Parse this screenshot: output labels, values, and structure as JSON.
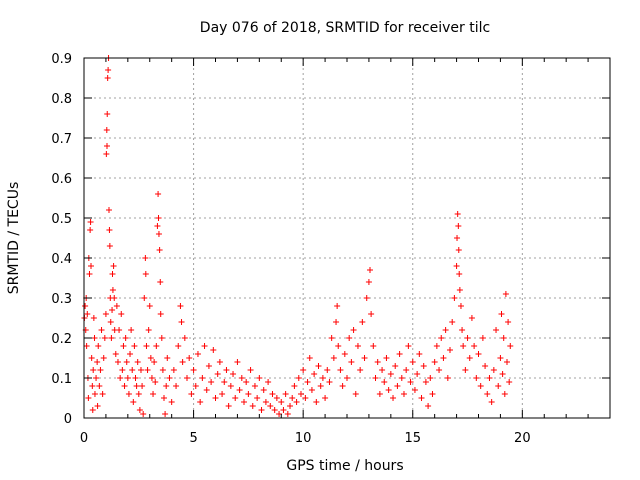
{
  "chart_data": {
    "type": "scatter",
    "title": "Day 076 of 2018, SRMTID for receiver tilc",
    "xlabel": "GPS time / hours",
    "ylabel": "SRMTID / TECUs",
    "xlim": [
      0,
      24
    ],
    "ylim": [
      0,
      0.9
    ],
    "xticks": [
      "0",
      "5",
      "10",
      "15",
      "20"
    ],
    "yticks": [
      "0",
      "0.1",
      "0.2",
      "0.3",
      "0.4",
      "0.5",
      "0.6",
      "0.7",
      "0.8",
      "0.9"
    ],
    "grid": true,
    "marker": "+",
    "marker_color": "#ff0000",
    "series": [
      {
        "name": "SRMTID",
        "points": [
          [
            0.02,
            0.25
          ],
          [
            0.05,
            0.28
          ],
          [
            0.08,
            0.22
          ],
          [
            0.1,
            0.3
          ],
          [
            0.12,
            0.18
          ],
          [
            0.15,
            0.26
          ],
          [
            0.18,
            0.1
          ],
          [
            0.2,
            0.05
          ],
          [
            0.22,
            0.4
          ],
          [
            0.25,
            0.36
          ],
          [
            0.28,
            0.47
          ],
          [
            0.3,
            0.49
          ],
          [
            0.32,
            0.38
          ],
          [
            0.35,
            0.15
          ],
          [
            0.38,
            0.08
          ],
          [
            0.4,
            0.02
          ],
          [
            0.42,
            0.12
          ],
          [
            0.45,
            0.25
          ],
          [
            0.48,
            0.2
          ],
          [
            0.5,
            0.06
          ],
          [
            0.55,
            0.1
          ],
          [
            0.6,
            0.14
          ],
          [
            0.62,
            0.03
          ],
          [
            0.65,
            0.18
          ],
          [
            0.7,
            0.08
          ],
          [
            0.75,
            0.12
          ],
          [
            0.8,
            0.22
          ],
          [
            0.85,
            0.06
          ],
          [
            0.9,
            0.15
          ],
          [
            0.95,
            0.2
          ],
          [
            1.0,
            0.26
          ],
          [
            1.02,
            0.66
          ],
          [
            1.04,
            0.72
          ],
          [
            1.05,
            0.68
          ],
          [
            1.06,
            0.76
          ],
          [
            1.08,
            0.85
          ],
          [
            1.1,
            0.87
          ],
          [
            1.12,
            0.9
          ],
          [
            1.14,
            0.52
          ],
          [
            1.16,
            0.47
          ],
          [
            1.18,
            0.43
          ],
          [
            1.2,
            0.3
          ],
          [
            1.22,
            0.24
          ],
          [
            1.25,
            0.2
          ],
          [
            1.28,
            0.27
          ],
          [
            1.3,
            0.36
          ],
          [
            1.32,
            0.32
          ],
          [
            1.35,
            0.38
          ],
          [
            1.38,
            0.3
          ],
          [
            1.4,
            0.22
          ],
          [
            1.45,
            0.16
          ],
          [
            1.5,
            0.28
          ],
          [
            1.55,
            0.14
          ],
          [
            1.6,
            0.22
          ],
          [
            1.65,
            0.1
          ],
          [
            1.7,
            0.26
          ],
          [
            1.75,
            0.12
          ],
          [
            1.8,
            0.18
          ],
          [
            1.85,
            0.08
          ],
          [
            1.9,
            0.2
          ],
          [
            1.95,
            0.14
          ],
          [
            2.0,
            0.1
          ],
          [
            2.05,
            0.06
          ],
          [
            2.1,
            0.16
          ],
          [
            2.15,
            0.22
          ],
          [
            2.2,
            0.12
          ],
          [
            2.25,
            0.04
          ],
          [
            2.3,
            0.18
          ],
          [
            2.35,
            0.1
          ],
          [
            2.4,
            0.08
          ],
          [
            2.45,
            0.14
          ],
          [
            2.5,
            0.06
          ],
          [
            2.55,
            0.02
          ],
          [
            2.6,
            0.12
          ],
          [
            2.65,
            0.08
          ],
          [
            2.7,
            0.01
          ],
          [
            2.75,
            0.3
          ],
          [
            2.8,
            0.4
          ],
          [
            2.82,
            0.36
          ],
          [
            2.85,
            0.18
          ],
          [
            2.9,
            0.12
          ],
          [
            2.95,
            0.22
          ],
          [
            3.0,
            0.28
          ],
          [
            3.05,
            0.15
          ],
          [
            3.1,
            0.1
          ],
          [
            3.15,
            0.06
          ],
          [
            3.2,
            0.14
          ],
          [
            3.25,
            0.09
          ],
          [
            3.3,
            0.18
          ],
          [
            3.35,
            0.48
          ],
          [
            3.38,
            0.56
          ],
          [
            3.4,
            0.5
          ],
          [
            3.42,
            0.46
          ],
          [
            3.45,
            0.42
          ],
          [
            3.48,
            0.34
          ],
          [
            3.5,
            0.26
          ],
          [
            3.55,
            0.2
          ],
          [
            3.6,
            0.12
          ],
          [
            3.65,
            0.05
          ],
          [
            3.7,
            0.01
          ],
          [
            3.75,
            0.08
          ],
          [
            3.8,
            0.15
          ],
          [
            3.9,
            0.1
          ],
          [
            4.0,
            0.04
          ],
          [
            4.1,
            0.12
          ],
          [
            4.2,
            0.08
          ],
          [
            4.3,
            0.18
          ],
          [
            4.4,
            0.28
          ],
          [
            4.45,
            0.24
          ],
          [
            4.5,
            0.14
          ],
          [
            4.6,
            0.2
          ],
          [
            4.7,
            0.1
          ],
          [
            4.8,
            0.15
          ],
          [
            4.9,
            0.06
          ],
          [
            5.0,
            0.12
          ],
          [
            5.1,
            0.08
          ],
          [
            5.2,
            0.16
          ],
          [
            5.3,
            0.04
          ],
          [
            5.4,
            0.1
          ],
          [
            5.5,
            0.18
          ],
          [
            5.6,
            0.07
          ],
          [
            5.7,
            0.13
          ],
          [
            5.8,
            0.09
          ],
          [
            5.9,
            0.17
          ],
          [
            6.0,
            0.05
          ],
          [
            6.1,
            0.11
          ],
          [
            6.2,
            0.14
          ],
          [
            6.3,
            0.06
          ],
          [
            6.4,
            0.09
          ],
          [
            6.5,
            0.12
          ],
          [
            6.6,
            0.03
          ],
          [
            6.7,
            0.08
          ],
          [
            6.8,
            0.11
          ],
          [
            6.9,
            0.05
          ],
          [
            7.0,
            0.14
          ],
          [
            7.1,
            0.07
          ],
          [
            7.2,
            0.1
          ],
          [
            7.3,
            0.04
          ],
          [
            7.4,
            0.09
          ],
          [
            7.5,
            0.06
          ],
          [
            7.6,
            0.12
          ],
          [
            7.7,
            0.03
          ],
          [
            7.8,
            0.08
          ],
          [
            7.9,
            0.05
          ],
          [
            8.0,
            0.1
          ],
          [
            8.1,
            0.02
          ],
          [
            8.2,
            0.07
          ],
          [
            8.3,
            0.04
          ],
          [
            8.4,
            0.09
          ],
          [
            8.5,
            0.03
          ],
          [
            8.6,
            0.06
          ],
          [
            8.7,
            0.02
          ],
          [
            8.8,
            0.05
          ],
          [
            8.9,
            0.01
          ],
          [
            9.0,
            0.04
          ],
          [
            9.1,
            0.02
          ],
          [
            9.2,
            0.06
          ],
          [
            9.3,
            0.01
          ],
          [
            9.4,
            0.03
          ],
          [
            9.5,
            0.05
          ],
          [
            9.6,
            0.08
          ],
          [
            9.7,
            0.04
          ],
          [
            9.8,
            0.1
          ],
          [
            9.9,
            0.06
          ],
          [
            10.0,
            0.12
          ],
          [
            10.1,
            0.05
          ],
          [
            10.2,
            0.09
          ],
          [
            10.3,
            0.15
          ],
          [
            10.4,
            0.07
          ],
          [
            10.5,
            0.11
          ],
          [
            10.6,
            0.04
          ],
          [
            10.7,
            0.13
          ],
          [
            10.8,
            0.08
          ],
          [
            10.9,
            0.1
          ],
          [
            11.0,
            0.05
          ],
          [
            11.1,
            0.12
          ],
          [
            11.2,
            0.09
          ],
          [
            11.3,
            0.2
          ],
          [
            11.4,
            0.15
          ],
          [
            11.5,
            0.24
          ],
          [
            11.55,
            0.28
          ],
          [
            11.6,
            0.18
          ],
          [
            11.7,
            0.12
          ],
          [
            11.8,
            0.08
          ],
          [
            11.9,
            0.16
          ],
          [
            12.0,
            0.1
          ],
          [
            12.1,
            0.2
          ],
          [
            12.2,
            0.14
          ],
          [
            12.3,
            0.22
          ],
          [
            12.4,
            0.06
          ],
          [
            12.5,
            0.18
          ],
          [
            12.6,
            0.12
          ],
          [
            12.7,
            0.24
          ],
          [
            12.8,
            0.15
          ],
          [
            12.9,
            0.3
          ],
          [
            13.0,
            0.34
          ],
          [
            13.05,
            0.37
          ],
          [
            13.1,
            0.26
          ],
          [
            13.2,
            0.18
          ],
          [
            13.3,
            0.1
          ],
          [
            13.4,
            0.14
          ],
          [
            13.5,
            0.06
          ],
          [
            13.6,
            0.12
          ],
          [
            13.7,
            0.09
          ],
          [
            13.8,
            0.15
          ],
          [
            13.9,
            0.07
          ],
          [
            14.0,
            0.11
          ],
          [
            14.1,
            0.05
          ],
          [
            14.2,
            0.13
          ],
          [
            14.3,
            0.08
          ],
          [
            14.4,
            0.16
          ],
          [
            14.5,
            0.1
          ],
          [
            14.6,
            0.06
          ],
          [
            14.7,
            0.12
          ],
          [
            14.8,
            0.18
          ],
          [
            14.9,
            0.09
          ],
          [
            15.0,
            0.14
          ],
          [
            15.1,
            0.07
          ],
          [
            15.2,
            0.11
          ],
          [
            15.3,
            0.16
          ],
          [
            15.4,
            0.05
          ],
          [
            15.5,
            0.13
          ],
          [
            15.6,
            0.09
          ],
          [
            15.7,
            0.03
          ],
          [
            15.8,
            0.1
          ],
          [
            15.9,
            0.06
          ],
          [
            16.0,
            0.14
          ],
          [
            16.1,
            0.18
          ],
          [
            16.2,
            0.12
          ],
          [
            16.3,
            0.2
          ],
          [
            16.4,
            0.15
          ],
          [
            16.5,
            0.22
          ],
          [
            16.6,
            0.1
          ],
          [
            16.7,
            0.17
          ],
          [
            16.8,
            0.24
          ],
          [
            16.9,
            0.3
          ],
          [
            17.0,
            0.38
          ],
          [
            17.02,
            0.45
          ],
          [
            17.05,
            0.51
          ],
          [
            17.08,
            0.48
          ],
          [
            17.1,
            0.42
          ],
          [
            17.12,
            0.36
          ],
          [
            17.15,
            0.32
          ],
          [
            17.2,
            0.28
          ],
          [
            17.25,
            0.22
          ],
          [
            17.3,
            0.18
          ],
          [
            17.4,
            0.12
          ],
          [
            17.5,
            0.2
          ],
          [
            17.6,
            0.15
          ],
          [
            17.7,
            0.25
          ],
          [
            17.8,
            0.18
          ],
          [
            17.9,
            0.1
          ],
          [
            18.0,
            0.16
          ],
          [
            18.1,
            0.08
          ],
          [
            18.2,
            0.2
          ],
          [
            18.3,
            0.13
          ],
          [
            18.4,
            0.06
          ],
          [
            18.5,
            0.1
          ],
          [
            18.6,
            0.04
          ],
          [
            18.7,
            0.12
          ],
          [
            18.8,
            0.22
          ],
          [
            18.9,
            0.08
          ],
          [
            19.0,
            0.15
          ],
          [
            19.05,
            0.26
          ],
          [
            19.1,
            0.11
          ],
          [
            19.15,
            0.2
          ],
          [
            19.2,
            0.06
          ],
          [
            19.25,
            0.31
          ],
          [
            19.3,
            0.14
          ],
          [
            19.35,
            0.24
          ],
          [
            19.4,
            0.09
          ],
          [
            19.45,
            0.18
          ]
        ]
      }
    ]
  }
}
